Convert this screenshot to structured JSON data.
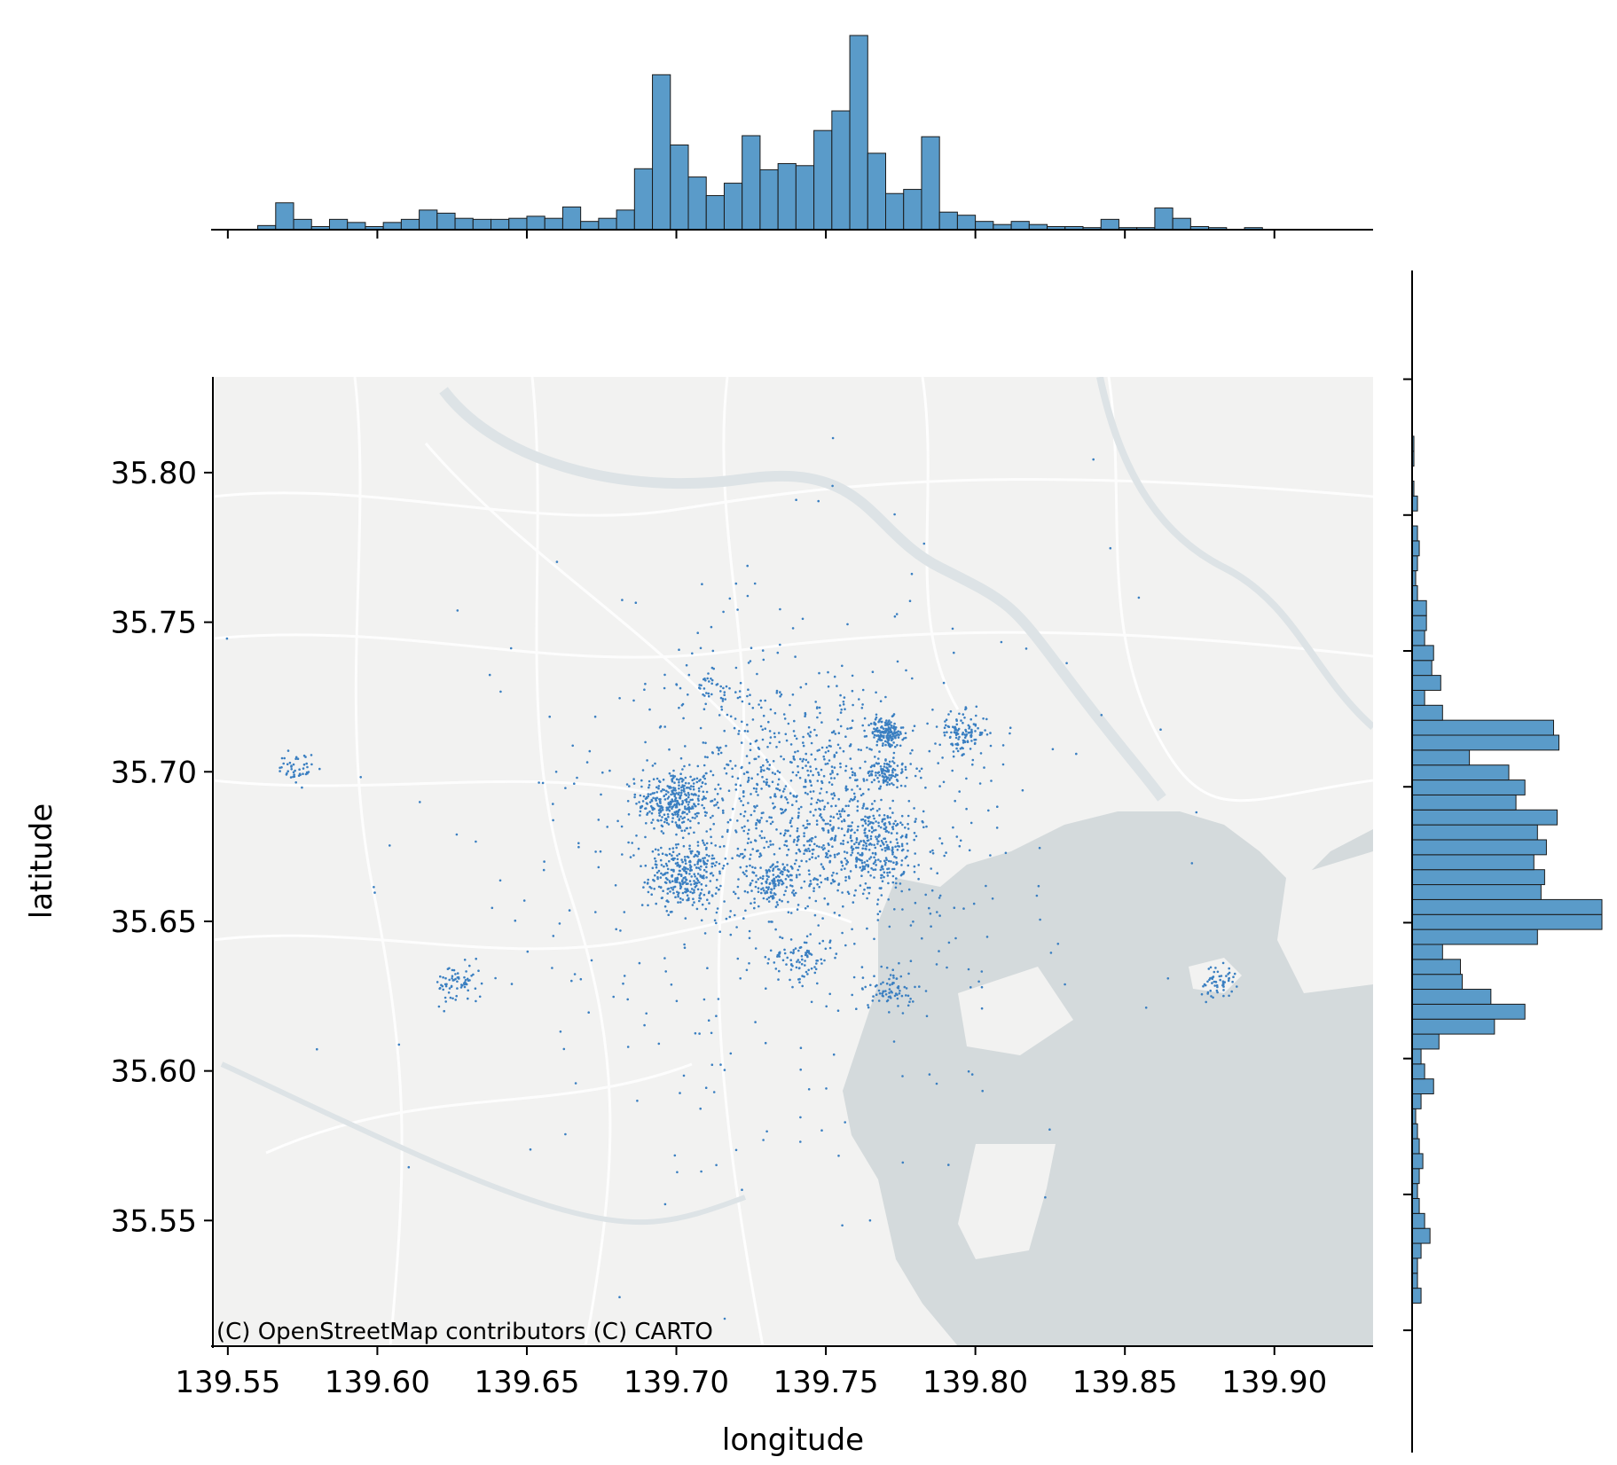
{
  "chart_data": {
    "type": "scatter",
    "subtype": "jointplot",
    "xlabel": "longitude",
    "ylabel": "latitude",
    "xlim": [
      139.545,
      139.933
    ],
    "ylim": [
      35.508,
      35.832
    ],
    "x_ticks": [
      "139.55",
      "139.60",
      "139.65",
      "139.70",
      "139.75",
      "139.80",
      "139.85",
      "139.90"
    ],
    "y_ticks": [
      "35.55",
      "35.60",
      "35.65",
      "35.70",
      "35.75",
      "35.80"
    ],
    "grid": false,
    "basemap": "CARTO light (Tokyo)",
    "attribution": "(C) OpenStreetMap contributors (C) CARTO",
    "marker_color": "#3a7fc1",
    "bar_color": "#5a9bc9",
    "clusters": [
      {
        "lon": 139.699,
        "lat": 35.69,
        "sd": 0.006,
        "n": 300
      },
      {
        "lon": 139.703,
        "lat": 35.665,
        "sd": 0.006,
        "n": 280
      },
      {
        "lon": 139.733,
        "lat": 35.663,
        "sd": 0.004,
        "n": 120
      },
      {
        "lon": 139.77,
        "lat": 35.713,
        "sd": 0.003,
        "n": 160
      },
      {
        "lon": 139.77,
        "lat": 35.7,
        "sd": 0.003,
        "n": 90
      },
      {
        "lon": 139.765,
        "lat": 35.675,
        "sd": 0.009,
        "n": 330
      },
      {
        "lon": 139.796,
        "lat": 35.713,
        "sd": 0.004,
        "n": 110
      },
      {
        "lon": 139.741,
        "lat": 35.638,
        "sd": 0.005,
        "n": 80
      },
      {
        "lon": 139.772,
        "lat": 35.627,
        "sd": 0.004,
        "n": 70
      },
      {
        "lon": 139.627,
        "lat": 35.629,
        "sd": 0.004,
        "n": 70
      },
      {
        "lon": 139.573,
        "lat": 35.701,
        "sd": 0.003,
        "n": 45
      },
      {
        "lon": 139.881,
        "lat": 35.63,
        "sd": 0.003,
        "n": 55
      },
      {
        "lon": 139.711,
        "lat": 35.729,
        "sd": 0.005,
        "n": 40
      },
      {
        "lon": 139.74,
        "lat": 35.69,
        "sd": 0.025,
        "n": 900
      },
      {
        "lon": 139.73,
        "lat": 35.66,
        "sd": 0.06,
        "n": 350
      }
    ],
    "x_hist": {
      "bins": [
        139.56,
        139.566,
        139.572,
        139.578,
        139.584,
        139.59,
        139.596,
        139.602,
        139.608,
        139.614,
        139.62,
        139.626,
        139.632,
        139.638,
        139.644,
        139.65,
        139.656,
        139.662,
        139.668,
        139.674,
        139.68,
        139.686,
        139.692,
        139.698,
        139.704,
        139.71,
        139.716,
        139.722,
        139.728,
        139.734,
        139.74,
        139.746,
        139.752,
        139.758,
        139.764,
        139.77,
        139.776,
        139.782,
        139.788,
        139.794,
        139.8,
        139.806,
        139.812,
        139.818,
        139.824,
        139.83,
        139.836,
        139.842,
        139.848,
        139.854,
        139.86,
        139.866,
        139.872,
        139.878,
        139.884,
        139.89,
        139.896,
        139.902,
        139.908,
        139.914,
        139.92
      ],
      "counts": [
        4,
        26,
        10,
        3,
        10,
        7,
        3,
        7,
        10,
        19,
        16,
        11,
        10,
        10,
        11,
        13,
        11,
        22,
        8,
        11,
        19,
        59,
        150,
        82,
        51,
        33,
        45,
        91,
        58,
        64,
        62,
        96,
        115,
        188,
        74,
        35,
        39,
        90,
        17,
        14,
        8,
        5,
        8,
        5,
        3,
        3,
        2,
        10,
        2,
        2,
        21,
        11,
        3,
        2,
        0,
        2,
        0,
        0,
        0,
        0
      ]
    },
    "y_hist": {
      "bins": [
        35.51,
        35.5155,
        35.521,
        35.5265,
        35.532,
        35.5375,
        35.543,
        35.5485,
        35.554,
        35.5595,
        35.565,
        35.5705,
        35.576,
        35.5815,
        35.587,
        35.5925,
        35.598,
        35.6035,
        35.609,
        35.6145,
        35.62,
        35.6255,
        35.631,
        35.6365,
        35.642,
        35.6475,
        35.653,
        35.6585,
        35.664,
        35.6695,
        35.675,
        35.6805,
        35.686,
        35.6915,
        35.697,
        35.7025,
        35.708,
        35.7135,
        35.719,
        35.7245,
        35.73,
        35.7355,
        35.741,
        35.7465,
        35.752,
        35.7575,
        35.763,
        35.7685,
        35.774,
        35.7795,
        35.785,
        35.7905,
        35.796,
        35.8015,
        35.807,
        35.8125,
        35.818,
        35.8235,
        35.829
      ],
      "counts": [
        5,
        3,
        3,
        5,
        10,
        7,
        4,
        3,
        4,
        6,
        4,
        3,
        2,
        5,
        12,
        7,
        5,
        15,
        46,
        63,
        44,
        28,
        27,
        17,
        70,
        106,
        106,
        72,
        74,
        68,
        75,
        70,
        81,
        58,
        63,
        54,
        32,
        82,
        79,
        17,
        7,
        16,
        11,
        12,
        7,
        8,
        8,
        3,
        2,
        3,
        4,
        3,
        0,
        3,
        1,
        0,
        1,
        1
      ]
    }
  }
}
